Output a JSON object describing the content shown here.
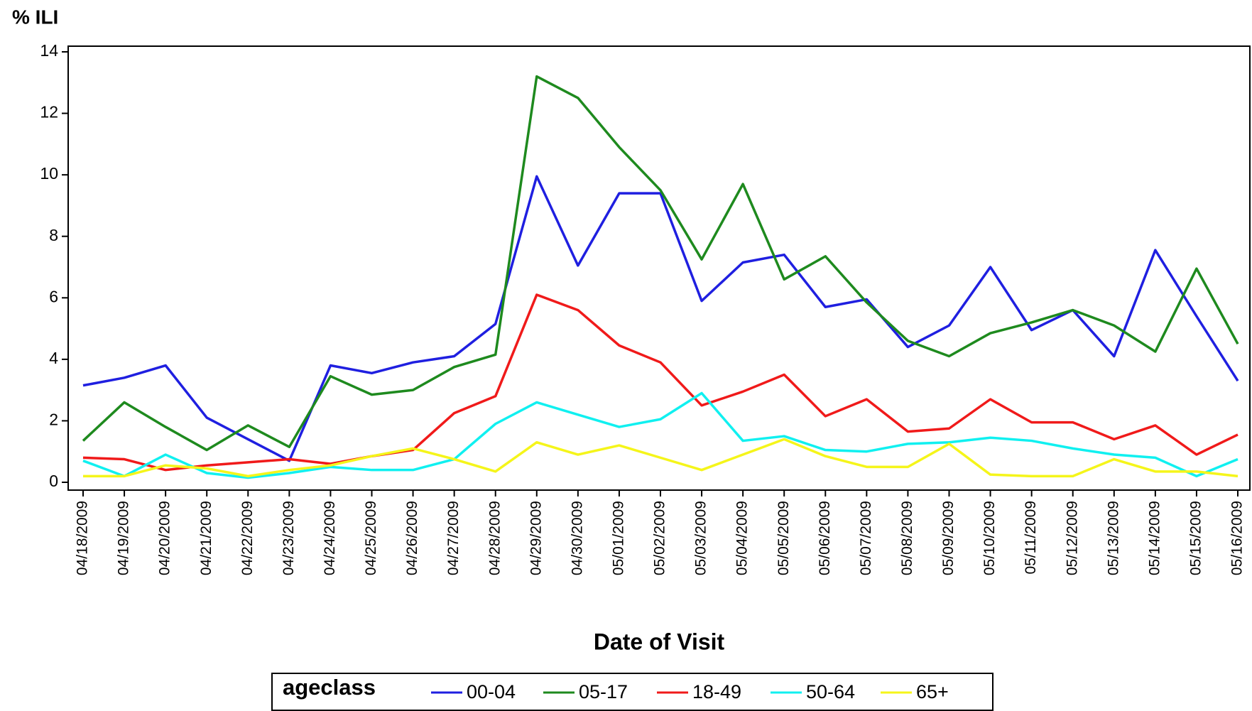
{
  "chart_data": {
    "type": "line",
    "y_label": "% ILI",
    "x_label": "Date of Visit",
    "legend_title": "ageclass",
    "categories": [
      "04/18/2009",
      "04/19/2009",
      "04/20/2009",
      "04/21/2009",
      "04/22/2009",
      "04/23/2009",
      "04/24/2009",
      "04/25/2009",
      "04/26/2009",
      "04/27/2009",
      "04/28/2009",
      "04/29/2009",
      "04/30/2009",
      "05/01/2009",
      "05/02/2009",
      "05/03/2009",
      "05/04/2009",
      "05/05/2009",
      "05/06/2009",
      "05/07/2009",
      "05/08/2009",
      "05/09/2009",
      "05/10/2009",
      "05/11/2009",
      "05/12/2009",
      "05/13/2009",
      "05/14/2009",
      "05/15/2009",
      "05/16/2009"
    ],
    "series": [
      {
        "name": "00-04",
        "color": "#1f1fe0",
        "values": [
          3.15,
          3.4,
          3.8,
          2.1,
          1.4,
          0.7,
          3.8,
          3.55,
          3.9,
          4.1,
          5.15,
          9.95,
          7.05,
          9.4,
          9.4,
          5.9,
          7.15,
          7.4,
          5.7,
          5.95,
          4.4,
          5.1,
          7.0,
          4.95,
          5.6,
          4.1,
          7.55,
          5.4,
          3.3
        ]
      },
      {
        "name": "05-17",
        "color": "#1e8a1e",
        "values": [
          1.35,
          2.6,
          1.8,
          1.05,
          1.85,
          1.15,
          3.45,
          2.85,
          3.0,
          3.75,
          4.15,
          13.2,
          12.5,
          10.9,
          9.5,
          7.25,
          9.7,
          6.6,
          7.35,
          5.85,
          4.6,
          4.1,
          4.85,
          5.2,
          5.6,
          5.1,
          4.25,
          6.95,
          4.5
        ]
      },
      {
        "name": "18-49",
        "color": "#f01a1a",
        "values": [
          0.8,
          0.75,
          0.4,
          0.55,
          0.65,
          0.75,
          0.6,
          0.85,
          1.05,
          2.25,
          2.8,
          6.1,
          5.6,
          4.45,
          3.9,
          2.5,
          2.95,
          3.5,
          2.15,
          2.7,
          1.65,
          1.75,
          2.7,
          1.95,
          1.95,
          1.4,
          1.85,
          0.9,
          1.55
        ]
      },
      {
        "name": "50-64",
        "color": "#10f0f0",
        "values": [
          0.7,
          0.2,
          0.9,
          0.3,
          0.15,
          0.3,
          0.5,
          0.4,
          0.4,
          0.75,
          1.9,
          2.6,
          2.2,
          1.8,
          2.05,
          2.9,
          1.35,
          1.5,
          1.05,
          1.0,
          1.25,
          1.3,
          1.45,
          1.35,
          1.1,
          0.9,
          0.8,
          0.2,
          0.75
        ]
      },
      {
        "name": "65+",
        "color": "#f5f51a",
        "values": [
          0.2,
          0.2,
          0.55,
          0.45,
          0.2,
          0.4,
          0.55,
          0.85,
          1.1,
          0.75,
          0.35,
          1.3,
          0.9,
          1.2,
          0.8,
          0.4,
          0.9,
          1.4,
          0.85,
          0.5,
          0.5,
          1.25,
          0.25,
          0.2,
          0.2,
          0.75,
          0.35,
          0.35,
          0.2
        ]
      }
    ],
    "ylim": [
      0,
      14
    ],
    "yticks": [
      0,
      2,
      4,
      6,
      8,
      10,
      12,
      14
    ]
  }
}
